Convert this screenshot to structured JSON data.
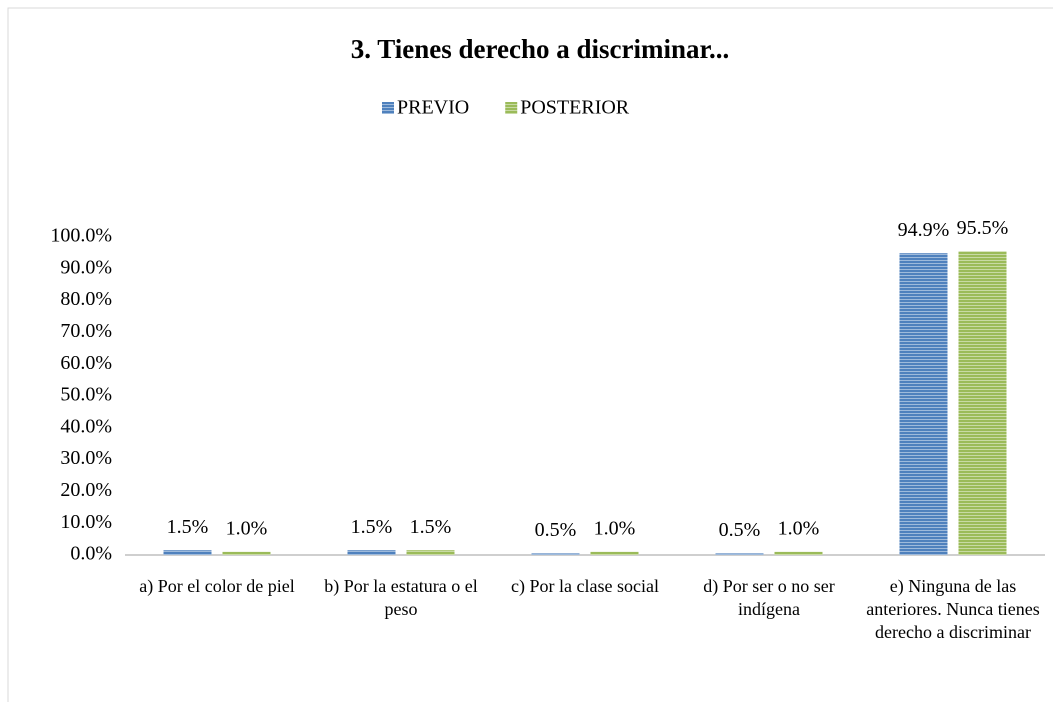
{
  "chart_data": {
    "type": "bar",
    "title": "3. Tienes derecho a discriminar...",
    "categories": [
      "a) Por el color de piel",
      "b) Por la estatura o el peso",
      "c) Por la clase social",
      "d) Por ser o no ser indígena",
      "e) Ninguna de las anteriores. Nunca tienes derecho a discriminar"
    ],
    "series": [
      {
        "name": "PREVIO",
        "color": "#4f81bd",
        "values": [
          1.5,
          1.5,
          0.5,
          0.5,
          94.9
        ],
        "value_labels": [
          "1.5%",
          "1.5%",
          "0.5%",
          "0.5%",
          "94.9%"
        ]
      },
      {
        "name": "POSTERIOR",
        "color": "#9bbb59",
        "values": [
          1.0,
          1.5,
          1.0,
          1.0,
          95.5
        ],
        "value_labels": [
          "1.0%",
          "1.5%",
          "1.0%",
          "1.0%",
          "95.5%"
        ]
      }
    ],
    "ylim": [
      0,
      100
    ],
    "yticks": [
      {
        "value": 0,
        "label": "0.0%"
      },
      {
        "value": 10,
        "label": "10.0%"
      },
      {
        "value": 20,
        "label": "20.0%"
      },
      {
        "value": 30,
        "label": "30.0%"
      },
      {
        "value": 40,
        "label": "40.0%"
      },
      {
        "value": 50,
        "label": "50.0%"
      },
      {
        "value": 60,
        "label": "60.0%"
      },
      {
        "value": 70,
        "label": "70.0%"
      },
      {
        "value": 80,
        "label": "80.0%"
      },
      {
        "value": 90,
        "label": "90.0%"
      },
      {
        "value": 100,
        "label": "100.0%"
      }
    ],
    "legend": "top"
  }
}
